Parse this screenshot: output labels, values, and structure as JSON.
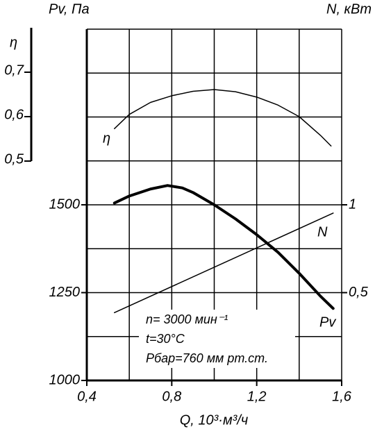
{
  "chart_data": {
    "type": "line",
    "y_label": "Pv, Па",
    "y2_label": "N, кВт",
    "eta_label": "η",
    "x_label": "Q, 10³·м³/ч",
    "annotations": [
      "n= 3000 мин⁻¹",
      "t=30°C",
      "Рбар=760 мм рт.ст."
    ],
    "xlim": [
      0.4,
      1.6
    ],
    "xticks": [
      {
        "value": 0.4,
        "label": "0,4"
      },
      {
        "value": 0.8,
        "label": "0,8"
      },
      {
        "value": 1.2,
        "label": "1,2"
      },
      {
        "value": 1.6,
        "label": "1,6"
      }
    ],
    "xgrid": [
      0.4,
      0.6,
      0.8,
      1.0,
      1.2,
      1.4,
      1.6
    ],
    "ylim": [
      1000,
      2000
    ],
    "yticks": [
      1000,
      1250,
      1500
    ],
    "ygrid": [
      1000,
      1125,
      1250,
      1375,
      1500,
      1625,
      1750,
      1875,
      2000
    ],
    "y2lim": [
      0,
      2
    ],
    "y2ticks": [
      {
        "value": 0.5,
        "label": "0,5"
      },
      1
    ],
    "etalim": [
      0.5,
      0.8
    ],
    "etaticks": [
      {
        "value": 0.5,
        "label": "0,5"
      },
      {
        "value": 0.6,
        "label": "0,6"
      },
      {
        "value": 0.7,
        "label": "0,7"
      }
    ],
    "grid": true,
    "series": [
      {
        "name": "Pv",
        "color": "#000000",
        "axis": "y",
        "x": [
          0.53,
          0.6,
          0.7,
          0.78,
          0.85,
          0.9,
          1.0,
          1.1,
          1.2,
          1.3,
          1.4,
          1.5,
          1.56
        ],
        "values": [
          1505,
          1525,
          1545,
          1555,
          1548,
          1535,
          1500,
          1460,
          1415,
          1365,
          1305,
          1240,
          1205
        ]
      },
      {
        "name": "η",
        "color": "#000000",
        "axis": "eta",
        "x": [
          0.53,
          0.6,
          0.7,
          0.8,
          0.9,
          1.0,
          1.1,
          1.2,
          1.3,
          1.4,
          1.5,
          1.55
        ],
        "values": [
          0.573,
          0.605,
          0.632,
          0.647,
          0.657,
          0.661,
          0.656,
          0.644,
          0.626,
          0.6,
          0.558,
          0.534
        ]
      },
      {
        "name": "N",
        "color": "#000000",
        "axis": "y2",
        "x": [
          0.53,
          1.56
        ],
        "values": [
          0.386,
          0.953
        ]
      }
    ]
  }
}
